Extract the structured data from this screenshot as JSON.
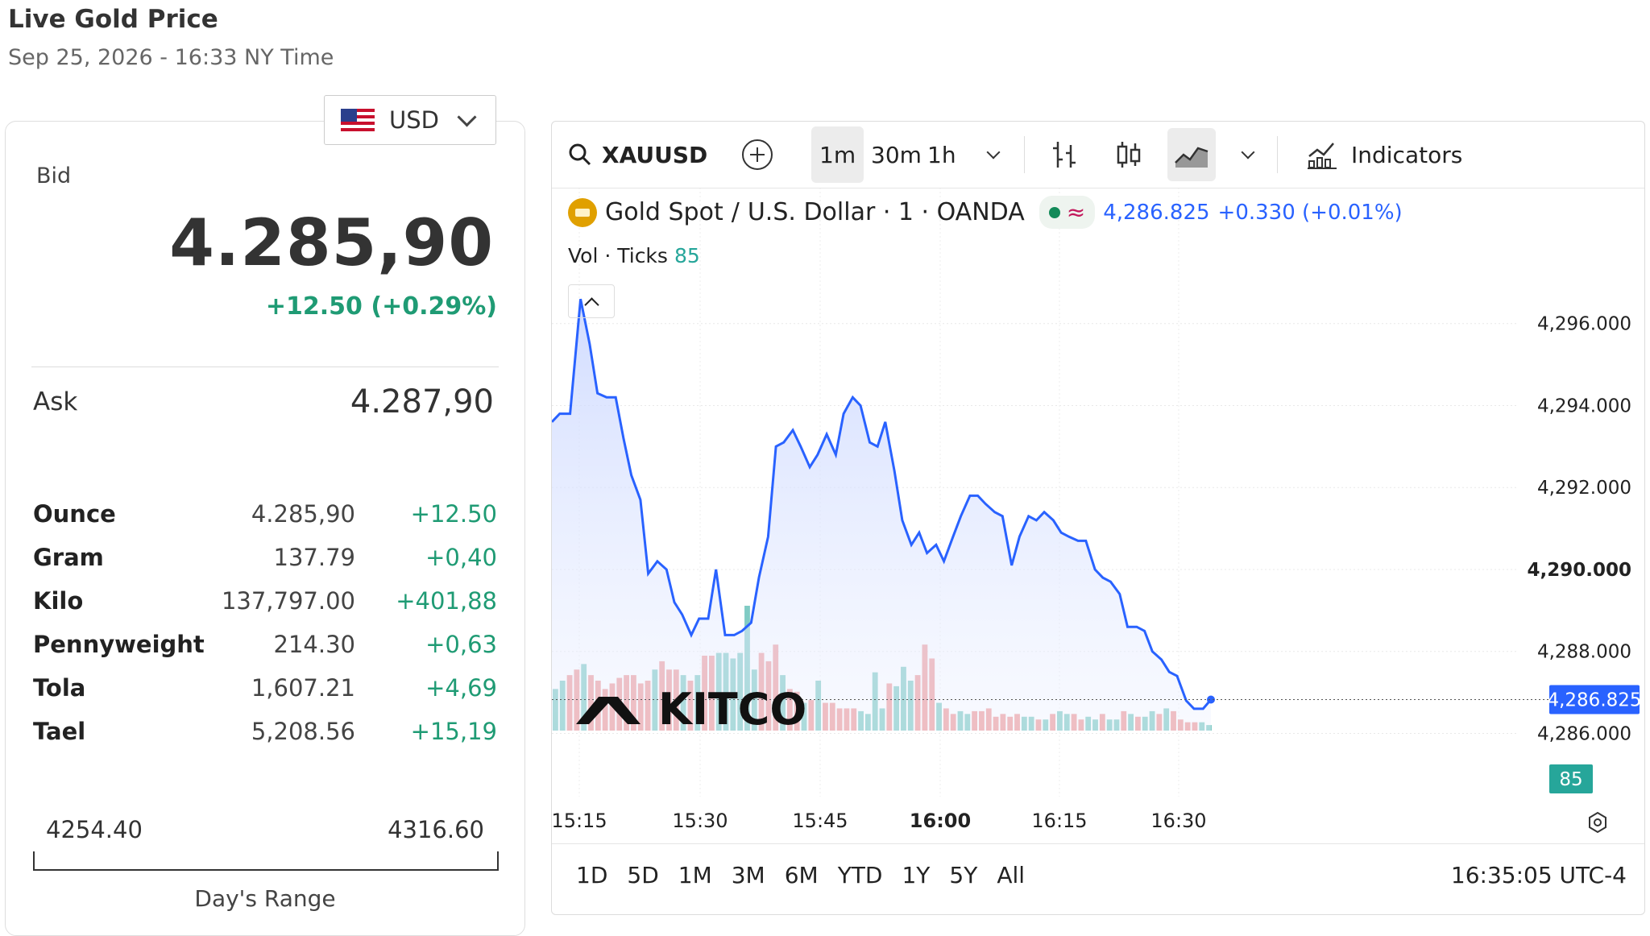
{
  "header": {
    "title": "Live Gold Price",
    "subtitle": "Sep 25, 2026 - 16:33 NY Time"
  },
  "currency": {
    "selected": "USD",
    "flag_icon": "us-flag-icon"
  },
  "quote": {
    "bid_label": "Bid",
    "bid_value": "4.285,90",
    "bid_change": "+12.50 (+0.29%)",
    "ask_label": "Ask",
    "ask_value": "4.287,90"
  },
  "units": [
    {
      "name": "Ounce",
      "value": "4.285,90",
      "change": "+12.50"
    },
    {
      "name": "Gram",
      "value": "137.79",
      "change": "+0,40"
    },
    {
      "name": "Kilo",
      "value": "137,797.00",
      "change": "+401,88"
    },
    {
      "name": "Pennyweight",
      "value": "214.30",
      "change": "+0,63"
    },
    {
      "name": "Tola",
      "value": "1,607.21",
      "change": "+4,69"
    },
    {
      "name": "Tael",
      "value": "5,208.56",
      "change": "+15,19"
    }
  ],
  "day_range": {
    "low": "4254.40",
    "high": "4316.60",
    "label": "Day's Range"
  },
  "toolbar": {
    "symbol": "XAUUSD",
    "intervals": [
      "1m",
      "30m",
      "1h"
    ],
    "active_interval": "1m",
    "indicators_label": "Indicators"
  },
  "legend": {
    "instrument": "Gold Spot",
    "separator": "/",
    "quote": "U.S. Dollar · 1 · OANDA",
    "approx_symbol": "≈",
    "price": "4,286.825",
    "change": "+0.330 (+0.01%)",
    "vol_label": "Vol · Ticks",
    "vol_value": "85"
  },
  "colors": {
    "line": "#2962ff",
    "up_volume": "#80cbc4",
    "down_volume": "#ef9a9a",
    "positive": "#1f9b74",
    "price_tag": "#2962ff",
    "volume_tag": "#26a69a"
  },
  "chart_data": {
    "type": "area",
    "title": "Gold Spot / U.S. Dollar · 1 · OANDA",
    "x_ticks": [
      "15:15",
      "15:30",
      "15:45",
      "16:00",
      "16:15",
      "16:30"
    ],
    "bold_x_tick": "16:00",
    "y_ticks": [
      "4,296.000",
      "4,294.000",
      "4,292.000",
      "4,290.000",
      "4,288.000",
      "4,286.000"
    ],
    "bold_y_tick": "4,290.000",
    "ylim": [
      4285.4,
      4296.8
    ],
    "x_range_minutes": [
      14.0,
      78.6
    ],
    "last_price_label": "4,286.825",
    "last_price": 4286.825,
    "last_volume_label": "85",
    "series": [
      {
        "name": "XAUUSD",
        "points": [
          [
            14.0,
            4293.6
          ],
          [
            14.6,
            4293.8
          ],
          [
            15.4,
            4293.8
          ],
          [
            16.2,
            4296.6
          ],
          [
            16.9,
            4295.5
          ],
          [
            17.5,
            4294.3
          ],
          [
            18.2,
            4294.2
          ],
          [
            18.9,
            4294.2
          ],
          [
            19.5,
            4293.2
          ],
          [
            20.1,
            4292.3
          ],
          [
            20.8,
            4291.7
          ],
          [
            21.4,
            4289.9
          ],
          [
            22.1,
            4290.2
          ],
          [
            22.8,
            4290.0
          ],
          [
            23.4,
            4289.2
          ],
          [
            24.0,
            4288.9
          ],
          [
            24.7,
            4288.4
          ],
          [
            25.3,
            4288.8
          ],
          [
            26.0,
            4288.8
          ],
          [
            26.6,
            4290.0
          ],
          [
            27.3,
            4288.4
          ],
          [
            28.0,
            4288.4
          ],
          [
            28.6,
            4288.5
          ],
          [
            29.3,
            4288.7
          ],
          [
            29.9,
            4289.8
          ],
          [
            30.6,
            4290.8
          ],
          [
            31.2,
            4293.0
          ],
          [
            31.8,
            4293.1
          ],
          [
            32.5,
            4293.4
          ],
          [
            33.1,
            4293.0
          ],
          [
            33.8,
            4292.5
          ],
          [
            34.4,
            4292.8
          ],
          [
            35.1,
            4293.3
          ],
          [
            35.8,
            4292.8
          ],
          [
            36.4,
            4293.8
          ],
          [
            37.1,
            4294.2
          ],
          [
            37.7,
            4294.0
          ],
          [
            38.4,
            4293.1
          ],
          [
            39.0,
            4293.0
          ],
          [
            39.6,
            4293.6
          ],
          [
            40.3,
            4292.4
          ],
          [
            40.9,
            4291.2
          ],
          [
            41.6,
            4290.6
          ],
          [
            42.2,
            4290.9
          ],
          [
            42.8,
            4290.4
          ],
          [
            43.5,
            4290.6
          ],
          [
            44.1,
            4290.2
          ],
          [
            44.8,
            4290.8
          ],
          [
            45.4,
            4291.3
          ],
          [
            46.1,
            4291.8
          ],
          [
            46.7,
            4291.8
          ],
          [
            47.3,
            4291.6
          ],
          [
            48.0,
            4291.4
          ],
          [
            48.6,
            4291.3
          ],
          [
            49.3,
            4290.1
          ],
          [
            49.9,
            4290.8
          ],
          [
            50.6,
            4291.3
          ],
          [
            51.2,
            4291.2
          ],
          [
            51.8,
            4291.4
          ],
          [
            52.5,
            4291.2
          ],
          [
            53.1,
            4290.9
          ],
          [
            53.7,
            4290.8
          ],
          [
            54.4,
            4290.7
          ],
          [
            55.0,
            4290.7
          ],
          [
            55.7,
            4290.0
          ],
          [
            56.3,
            4289.8
          ],
          [
            56.9,
            4289.7
          ],
          [
            57.6,
            4289.4
          ],
          [
            58.2,
            4288.6
          ],
          [
            58.9,
            4288.6
          ],
          [
            59.5,
            4288.5
          ],
          [
            60.1,
            4288.0
          ],
          [
            60.8,
            4287.8
          ],
          [
            61.4,
            4287.5
          ],
          [
            62.0,
            4287.4
          ],
          [
            62.7,
            4286.8
          ],
          [
            63.3,
            4286.6
          ],
          [
            64.0,
            4286.6
          ],
          [
            64.6,
            4286.825
          ]
        ]
      }
    ],
    "volume": {
      "name": "Vol · Ticks",
      "bars": [
        [
          15,
          "u"
        ],
        [
          18,
          "u"
        ],
        [
          20,
          "d"
        ],
        [
          22,
          "d"
        ],
        [
          24,
          "u"
        ],
        [
          20,
          "d"
        ],
        [
          18,
          "d"
        ],
        [
          15,
          "d"
        ],
        [
          17,
          "d"
        ],
        [
          19,
          "d"
        ],
        [
          20,
          "d"
        ],
        [
          20,
          "d"
        ],
        [
          17,
          "d"
        ],
        [
          18,
          "d"
        ],
        [
          22,
          "u"
        ],
        [
          25,
          "d"
        ],
        [
          22,
          "d"
        ],
        [
          22,
          "d"
        ],
        [
          20,
          "u"
        ],
        [
          18,
          "d"
        ],
        [
          20,
          "u"
        ],
        [
          27,
          "d"
        ],
        [
          27,
          "d"
        ],
        [
          28,
          "u"
        ],
        [
          28,
          "u"
        ],
        [
          26,
          "u"
        ],
        [
          28,
          "u"
        ],
        [
          45,
          "u"
        ],
        [
          22,
          "u"
        ],
        [
          28,
          "d"
        ],
        [
          25,
          "d"
        ],
        [
          31,
          "d"
        ],
        [
          20,
          "u"
        ],
        [
          15,
          "d"
        ],
        [
          14,
          "d"
        ],
        [
          10,
          "u"
        ],
        [
          11,
          "d"
        ],
        [
          18,
          "u"
        ],
        [
          10,
          "d"
        ],
        [
          10,
          "d"
        ],
        [
          8,
          "d"
        ],
        [
          8,
          "d"
        ],
        [
          8,
          "d"
        ],
        [
          7,
          "u"
        ],
        [
          6,
          "u"
        ],
        [
          21,
          "u"
        ],
        [
          8,
          "u"
        ],
        [
          17,
          "d"
        ],
        [
          16,
          "u"
        ],
        [
          23,
          "u"
        ],
        [
          18,
          "u"
        ],
        [
          20,
          "d"
        ],
        [
          31,
          "d"
        ],
        [
          26,
          "d"
        ],
        [
          10,
          "u"
        ],
        [
          8,
          "d"
        ],
        [
          6,
          "d"
        ],
        [
          7,
          "u"
        ],
        [
          6,
          "u"
        ],
        [
          7,
          "d"
        ],
        [
          7,
          "d"
        ],
        [
          8,
          "d"
        ],
        [
          5,
          "d"
        ],
        [
          6,
          "d"
        ],
        [
          5,
          "d"
        ],
        [
          6,
          "d"
        ],
        [
          5,
          "u"
        ],
        [
          5,
          "u"
        ],
        [
          4,
          "d"
        ],
        [
          4,
          "u"
        ],
        [
          6,
          "d"
        ],
        [
          7,
          "u"
        ],
        [
          6,
          "u"
        ],
        [
          6,
          "d"
        ],
        [
          4,
          "d"
        ],
        [
          5,
          "u"
        ],
        [
          4,
          "u"
        ],
        [
          6,
          "d"
        ],
        [
          4,
          "u"
        ],
        [
          4,
          "u"
        ],
        [
          7,
          "d"
        ],
        [
          6,
          "u"
        ],
        [
          5,
          "d"
        ],
        [
          5,
          "u"
        ],
        [
          7,
          "u"
        ],
        [
          6,
          "d"
        ],
        [
          8,
          "u"
        ],
        [
          7,
          "d"
        ],
        [
          4,
          "d"
        ],
        [
          3,
          "d"
        ],
        [
          3,
          "d"
        ],
        [
          3,
          "u"
        ],
        [
          2,
          "u"
        ]
      ]
    },
    "grid": true
  },
  "watermark": "KITCO",
  "bottom": {
    "ranges": [
      "1D",
      "5D",
      "1M",
      "3M",
      "6M",
      "YTD",
      "1Y",
      "5Y",
      "All"
    ],
    "clock": "16:35:05 UTC-4"
  }
}
